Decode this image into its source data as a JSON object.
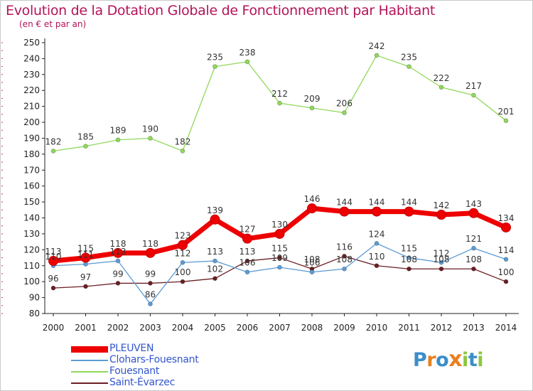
{
  "title": "Evolution de la Dotation Globale de Fonctionnement par Habitant",
  "subtitle": "(en € et par an)",
  "logo": {
    "letters": [
      "P",
      "r",
      "o",
      "x",
      "i",
      "t",
      "i"
    ],
    "colors": [
      "#3a8ec9",
      "#e8801f",
      "#3a8ec9",
      "#e8801f",
      "#8dc63f",
      "#3a8ec9",
      "#8dc63f"
    ]
  },
  "chart_data": {
    "type": "line",
    "x": [
      "2000",
      "2001",
      "2002",
      "2003",
      "2004",
      "2005",
      "2006",
      "2007",
      "2008",
      "2009",
      "2010",
      "2011",
      "2012",
      "2013",
      "2014"
    ],
    "ylim": [
      80,
      250
    ],
    "yticks": [
      "80",
      "90",
      "100",
      "110",
      "120",
      "130",
      "140",
      "150",
      "160",
      "170",
      "180",
      "190",
      "200",
      "210",
      "220",
      "230",
      "240",
      "250"
    ],
    "grid": false,
    "legend_position": "bottom-left",
    "series": [
      {
        "name": "PLEUVEN",
        "color": "#ee0000",
        "bold": true,
        "values": [
          113,
          115,
          118,
          118,
          123,
          139,
          127,
          130,
          146,
          144,
          144,
          144,
          142,
          143,
          134
        ]
      },
      {
        "name": "Clohars-Fouesnant",
        "color": "#5b9bd5",
        "values": [
          110,
          111,
          113,
          86,
          112,
          113,
          106,
          109,
          106,
          108,
          124,
          115,
          112,
          121,
          114
        ]
      },
      {
        "name": "Fouesnant",
        "color": "#90d85a",
        "values": [
          182,
          185,
          189,
          190,
          182,
          235,
          238,
          212,
          209,
          206,
          242,
          235,
          222,
          217,
          201
        ]
      },
      {
        "name": "Saint-Évarzec",
        "color": "#6b1f24",
        "values": [
          96,
          97,
          99,
          99,
          100,
          102,
          113,
          115,
          108,
          116,
          110,
          108,
          108,
          108,
          100
        ]
      }
    ]
  }
}
